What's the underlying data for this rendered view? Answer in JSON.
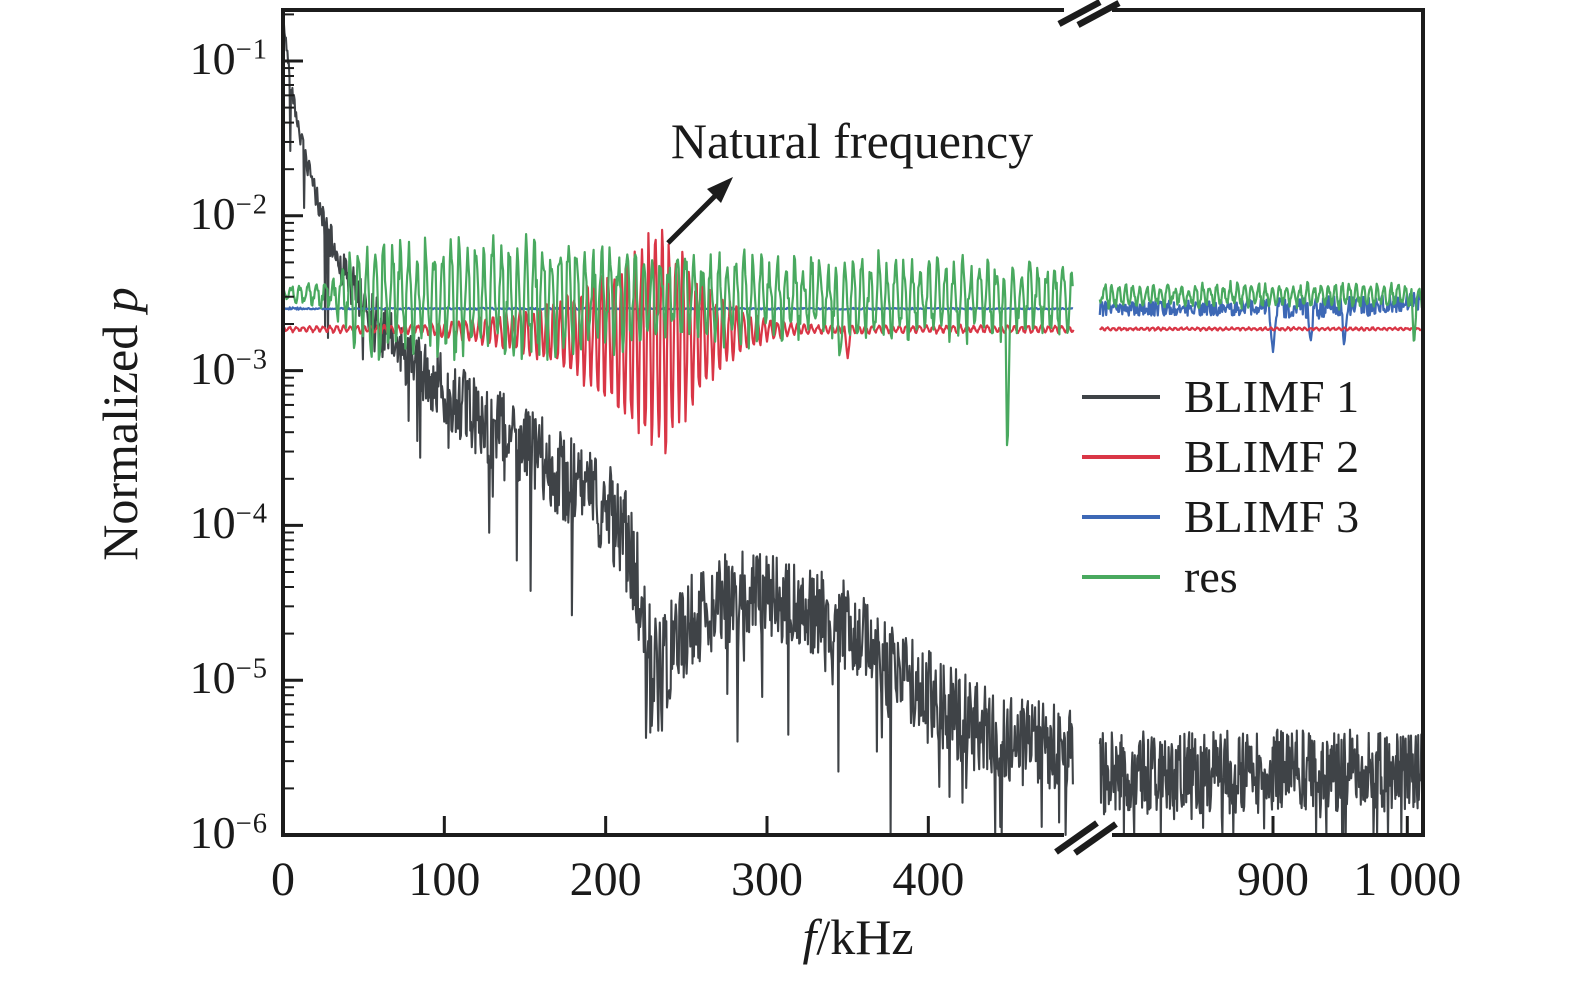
{
  "chart_data": {
    "type": "line",
    "title": "",
    "xlabel": "f/kHz",
    "xlabel_italic": "f",
    "xlabel_rest": "/kHz",
    "ylabel": "Normalized p",
    "ylabel_rest": "Normalized ",
    "ylabel_italic": "p",
    "annotation": {
      "text": "Natural frequency",
      "points_to_khz": 235,
      "peak_value": 0.007
    },
    "x_axis": {
      "units": "kHz",
      "broken": true,
      "left_range": [
        0,
        490
      ],
      "right_range": [
        771,
        1011
      ],
      "ticks": [
        {
          "f": 0,
          "label": "0"
        },
        {
          "f": 100,
          "label": "100"
        },
        {
          "f": 200,
          "label": "200"
        },
        {
          "f": 300,
          "label": "300"
        },
        {
          "f": 400,
          "label": "400"
        },
        {
          "f": 900,
          "label": "900"
        },
        {
          "f": 1000,
          "label": "1 000"
        }
      ]
    },
    "y_axis": {
      "scale": "log",
      "range": [
        1e-06,
        0.21
      ],
      "ticks": [
        {
          "exp": -1,
          "label": "10^-1"
        },
        {
          "exp": -2,
          "label": "10^-2"
        },
        {
          "exp": -3,
          "label": "10^-3"
        },
        {
          "exp": -4,
          "label": "10^-4"
        },
        {
          "exp": -5,
          "label": "10^-5"
        },
        {
          "exp": -6,
          "label": "10^-6"
        }
      ],
      "minor_ticks": true
    },
    "legend": {
      "position": "inside-right",
      "entries": [
        {
          "label": "BLIMF 1",
          "color": "#3f4347"
        },
        {
          "label": "BLIMF 2",
          "color": "#d93646"
        },
        {
          "label": "BLIMF 3",
          "color": "#3d68b5"
        },
        {
          "label": "res",
          "color": "#49a95f"
        }
      ]
    },
    "seed": 42,
    "panels": [
      {
        "f_range": [
          0,
          490
        ]
      },
      {
        "f_range": [
          771,
          1011.5
        ]
      }
    ],
    "series": [
      {
        "name": "BLIMF 1",
        "color": "#3f4347",
        "width": 2.1,
        "step": 0.45,
        "z": 0,
        "profile": [
          [
            0,
            -0.72
          ],
          [
            5,
            -1.15
          ],
          [
            10,
            -1.45
          ],
          [
            15,
            -1.68
          ],
          [
            20,
            -1.85
          ],
          [
            27,
            -2.1
          ],
          [
            35,
            -2.3
          ],
          [
            45,
            -2.5
          ],
          [
            55,
            -2.65
          ],
          [
            70,
            -2.85
          ],
          [
            85,
            -3.0
          ],
          [
            100,
            -3.12
          ],
          [
            120,
            -3.3
          ],
          [
            145,
            -3.45
          ],
          [
            170,
            -3.65
          ],
          [
            195,
            -3.85
          ],
          [
            210,
            -4.0
          ],
          [
            220,
            -4.45
          ],
          [
            228,
            -4.95
          ],
          [
            235,
            -5.0
          ],
          [
            243,
            -4.75
          ],
          [
            255,
            -4.6
          ],
          [
            270,
            -4.5
          ],
          [
            290,
            -4.45
          ],
          [
            310,
            -4.5
          ],
          [
            330,
            -4.55
          ],
          [
            350,
            -4.65
          ],
          [
            375,
            -4.9
          ],
          [
            400,
            -5.1
          ],
          [
            430,
            -5.3
          ],
          [
            460,
            -5.4
          ],
          [
            490,
            -5.45
          ],
          [
            771,
            -5.6
          ],
          [
            1011.5,
            -5.58
          ]
        ],
        "noise": {
          "amp": [
            [
              0,
              0.03
            ],
            [
              10,
              0.06
            ],
            [
              25,
              0.1
            ],
            [
              60,
              0.18
            ],
            [
              120,
              0.25
            ],
            [
              200,
              0.3
            ],
            [
              225,
              0.42
            ],
            [
              250,
              0.32
            ],
            [
              320,
              0.28
            ],
            [
              400,
              0.3
            ],
            [
              490,
              0.28
            ],
            [
              771,
              0.27
            ],
            [
              1011.5,
              0.27
            ]
          ],
          "down_p": 0.06,
          "down_extra": 0.85
        },
        "clip_low": -6
      },
      {
        "name": "BLIMF 3",
        "color": "#3d68b5",
        "width": 2.2,
        "step": 0.6,
        "z": 1,
        "profile": [
          [
            0,
            -2.6
          ],
          [
            490,
            -2.6
          ],
          [
            771,
            -2.6
          ],
          [
            960,
            -2.59
          ],
          [
            1011.5,
            -2.55
          ]
        ],
        "noise": {
          "amp": [
            [
              0,
              0.014
            ],
            [
              15,
              0.004
            ],
            [
              120,
              0.006
            ],
            [
              260,
              0.006
            ],
            [
              490,
              0.004
            ],
            [
              771,
              0.05
            ],
            [
              880,
              0.05
            ],
            [
              930,
              0.075
            ],
            [
              1011.5,
              0.055
            ]
          ],
          "down_p": 0,
          "down_extra": 0
        },
        "events": [
          {
            "f": 900,
            "log": -2.88,
            "w": 3
          },
          {
            "f": 928,
            "log": -2.82,
            "w": 2.5
          },
          {
            "f": 953,
            "log": -2.86,
            "w": 2
          }
        ]
      },
      {
        "name": "BLIMF 2",
        "color": "#d93646",
        "width": 2.2,
        "step": 0.5,
        "z": 2,
        "profile": [
          [
            0,
            -2.73
          ],
          [
            490,
            -2.73
          ],
          [
            771,
            -2.73
          ],
          [
            1011.5,
            -2.73
          ]
        ],
        "osc": {
          "period": 4.2,
          "crest_f": 235,
          "asym": 1.35,
          "jitter": 0.5,
          "amp": [
            [
              0,
              0.012
            ],
            [
              85,
              0.02
            ],
            [
              110,
              0.05
            ],
            [
              140,
              0.09
            ],
            [
              170,
              0.16
            ],
            [
              195,
              0.3
            ],
            [
              215,
              0.45
            ],
            [
              228,
              0.52
            ],
            [
              238,
              0.55
            ],
            [
              250,
              0.38
            ],
            [
              265,
              0.22
            ],
            [
              285,
              0.1
            ],
            [
              305,
              0.04
            ],
            [
              330,
              0.02
            ],
            [
              490,
              0.015
            ],
            [
              771,
              0.006
            ],
            [
              1011.5,
              0.006
            ]
          ]
        },
        "noise": {
          "amp": [
            [
              0,
              0.006
            ],
            [
              490,
              0.006
            ],
            [
              771,
              0.004
            ],
            [
              1011.5,
              0.004
            ]
          ],
          "down_p": 0,
          "down_extra": 0
        },
        "events": [
          {
            "f": 350,
            "log": -2.92,
            "w": 2
          }
        ]
      },
      {
        "name": "res",
        "color": "#49a95f",
        "width": 2.2,
        "step": 0.55,
        "z": 3,
        "profile": [
          [
            0,
            -2.5
          ],
          [
            490,
            -2.52
          ],
          [
            771,
            -2.51
          ],
          [
            1011.5,
            -2.51
          ]
        ],
        "osc": {
          "period": 5.2,
          "crest_f": 0,
          "asym": 1.2,
          "jitter": 0.9,
          "amp": [
            [
              0,
              0.03
            ],
            [
              30,
              0.06
            ],
            [
              42,
              0.2
            ],
            [
              60,
              0.27
            ],
            [
              200,
              0.26
            ],
            [
              230,
              0.2
            ],
            [
              490,
              0.17
            ],
            [
              771,
              0.05
            ],
            [
              1011.5,
              0.05
            ]
          ]
        },
        "noise": {
          "amp": [
            [
              0,
              0.012
            ],
            [
              40,
              0.05
            ],
            [
              200,
              0.05
            ],
            [
              490,
              0.04
            ],
            [
              771,
              0.02
            ],
            [
              1011.5,
              0.02
            ]
          ],
          "down_p": 0,
          "down_extra": 0
        },
        "events": [
          {
            "f": 345,
            "log": -2.92,
            "w": 2
          },
          {
            "f": 449,
            "log": -3.6,
            "w": 1.6
          },
          {
            "f": 1005,
            "log": -2.85,
            "w": 2
          }
        ]
      }
    ]
  }
}
